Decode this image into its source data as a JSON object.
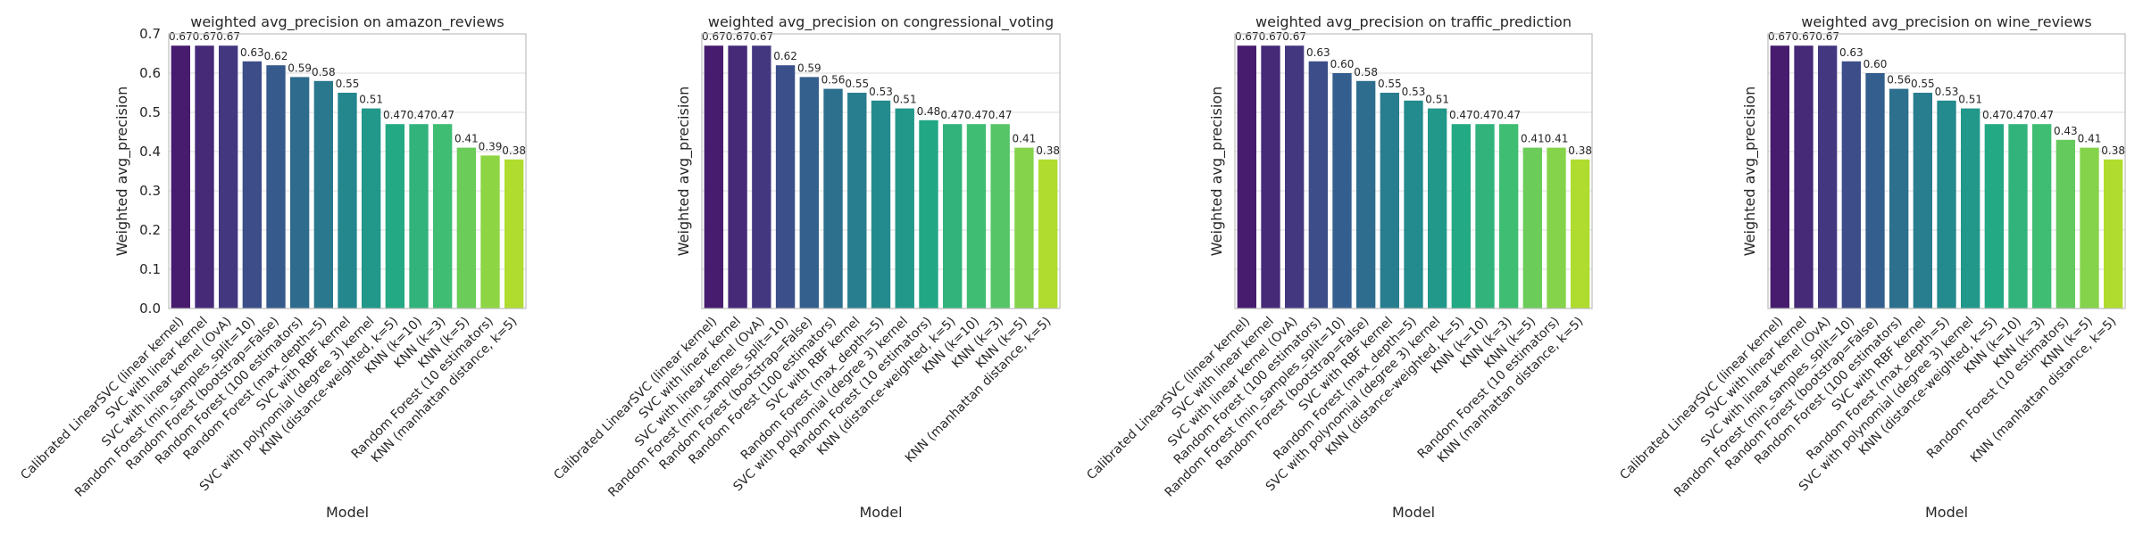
{
  "chart_data": [
    {
      "type": "bar",
      "title": "weighted avg_precision on amazon_reviews",
      "xlabel": "Model",
      "ylabel": "Weighted avg_precision",
      "ylim": [
        0,
        0.7
      ],
      "yticks": [
        "0.0",
        "0.1",
        "0.2",
        "0.3",
        "0.4",
        "0.5",
        "0.6",
        "0.7"
      ],
      "grid": true,
      "categories": [
        "Calibrated LinearSVC (linear kernel)",
        "SVC with linear kernel",
        "SVC with linear kernel (OvA)",
        "Random Forest (min_samples_split=10)",
        "Random Forest (bootstrap=False)",
        "Random Forest (100 estimators)",
        "Random Forest (max_depth=5)",
        "SVC with RBF kernel",
        "SVC with polynomial (degree 3) kernel",
        "KNN (distance-weighted, k=5)",
        "KNN (k=10)",
        "KNN (k=3)",
        "KNN (k=5)",
        "Random Forest (10 estimators)",
        "KNN (manhattan distance, k=5)"
      ],
      "values": [
        0.67,
        0.67,
        0.67,
        0.63,
        0.62,
        0.59,
        0.58,
        0.55,
        0.51,
        0.47,
        0.47,
        0.47,
        0.41,
        0.39,
        0.38
      ],
      "labels": [
        "0.67",
        "0.67",
        "0.67",
        "0.63",
        "0.62",
        "0.59",
        "0.58",
        "0.55",
        "0.51",
        "0.47",
        "0.47",
        "0.47",
        "0.41",
        "0.39",
        "0.38"
      ]
    },
    {
      "type": "bar",
      "title": "weighted avg_precision on congressional_voting",
      "xlabel": "Model",
      "ylabel": "Weighted avg_precision",
      "ylim": [
        0,
        0.7
      ],
      "yticks": [],
      "grid": true,
      "categories": [
        "Calibrated LinearSVC (linear kernel)",
        "SVC with linear kernel",
        "SVC with linear kernel (OvA)",
        "Random Forest (min_samples_split=10)",
        "Random Forest (bootstrap=False)",
        "Random Forest (100 estimators)",
        "SVC with RBF kernel",
        "Random Forest (max_depth=5)",
        "SVC with polynomial (degree 3) kernel",
        "Random Forest (10 estimators)",
        "KNN (distance-weighted, k=5)",
        "KNN (k=10)",
        "KNN (k=3)",
        "KNN (k=5)",
        "KNN (manhattan distance, k=5)"
      ],
      "values": [
        0.67,
        0.67,
        0.67,
        0.62,
        0.59,
        0.56,
        0.55,
        0.53,
        0.51,
        0.48,
        0.47,
        0.47,
        0.47,
        0.41,
        0.38
      ],
      "labels": [
        "0.67",
        "0.67",
        "0.67",
        "0.62",
        "0.59",
        "0.56",
        "0.55",
        "0.53",
        "0.51",
        "0.48",
        "0.47",
        "0.47",
        "0.47",
        "0.41",
        "0.38"
      ]
    },
    {
      "type": "bar",
      "title": "weighted avg_precision on traffic_prediction",
      "xlabel": "Model",
      "ylabel": "Weighted avg_precision",
      "ylim": [
        0,
        0.7
      ],
      "yticks": [],
      "grid": true,
      "categories": [
        "Calibrated LinearSVC (linear kernel)",
        "SVC with linear kernel",
        "SVC with linear kernel (OvA)",
        "Random Forest (100 estimators)",
        "Random Forest (min_samples_split=10)",
        "Random Forest (bootstrap=False)",
        "SVC with RBF kernel",
        "Random Forest (max_depth=5)",
        "SVC with polynomial (degree 3) kernel",
        "KNN (distance-weighted, k=5)",
        "KNN (k=10)",
        "KNN (k=3)",
        "KNN (k=5)",
        "Random Forest (10 estimators)",
        "KNN (manhattan distance, k=5)"
      ],
      "values": [
        0.67,
        0.67,
        0.67,
        0.63,
        0.6,
        0.58,
        0.55,
        0.53,
        0.51,
        0.47,
        0.47,
        0.47,
        0.41,
        0.41,
        0.38
      ],
      "labels": [
        "0.67",
        "0.67",
        "0.67",
        "0.63",
        "0.60",
        "0.58",
        "0.55",
        "0.53",
        "0.51",
        "0.47",
        "0.47",
        "0.47",
        "0.41",
        "0.41",
        "0.38"
      ]
    },
    {
      "type": "bar",
      "title": "weighted avg_precision on wine_reviews",
      "xlabel": "Model",
      "ylabel": "Weighted avg_precision",
      "ylim": [
        0,
        0.7
      ],
      "yticks": [],
      "grid": true,
      "categories": [
        "Calibrated LinearSVC (linear kernel)",
        "SVC with linear kernel",
        "SVC with linear kernel (OvA)",
        "Random Forest (min_samples_split=10)",
        "Random Forest (bootstrap=False)",
        "Random Forest (100 estimators)",
        "SVC with RBF kernel",
        "Random Forest (max_depth=5)",
        "SVC with polynomial (degree 3) kernel",
        "KNN (distance-weighted, k=5)",
        "KNN (k=10)",
        "KNN (k=3)",
        "Random Forest (10 estimators)",
        "KNN (k=5)",
        "KNN (manhattan distance, k=5)"
      ],
      "values": [
        0.67,
        0.67,
        0.67,
        0.63,
        0.6,
        0.56,
        0.55,
        0.53,
        0.51,
        0.47,
        0.47,
        0.47,
        0.43,
        0.41,
        0.38
      ],
      "labels": [
        "0.67",
        "0.67",
        "0.67",
        "0.63",
        "0.60",
        "0.56",
        "0.55",
        "0.53",
        "0.51",
        "0.47",
        "0.47",
        "0.47",
        "0.43",
        "0.41",
        "0.38"
      ]
    }
  ],
  "colors": {
    "palette": [
      "#440154",
      "#482374",
      "#404387",
      "#345e8d",
      "#2a788e",
      "#21908d",
      "#22a884",
      "#43bf71",
      "#7ad151",
      "#bcdf27",
      "#fde725"
    ],
    "grid": "#dcdcdc",
    "frame": "#bfbfbf",
    "text": "#262626"
  }
}
